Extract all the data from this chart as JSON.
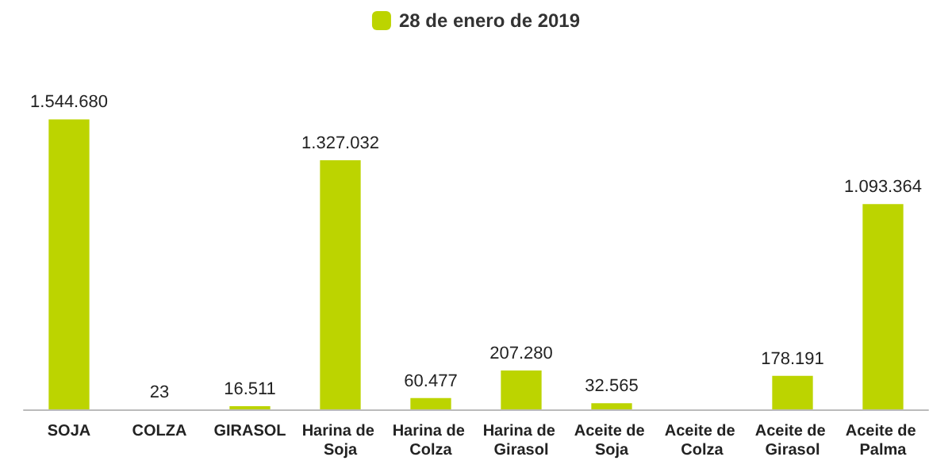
{
  "chart_data": {
    "type": "bar",
    "categories": [
      "SOJA",
      "COLZA",
      "GIRASOL",
      "Harina de Soja",
      "Harina de Colza",
      "Harina de Girasol",
      "Aceite de Soja",
      "Aceite de Colza",
      "Aceite de Girasol",
      "Aceite de Palma"
    ],
    "series": [
      {
        "name": "28 de enero de 2019",
        "color": "#bcd400",
        "values": [
          1544680,
          23,
          16511,
          1327032,
          60477,
          207280,
          32565,
          null,
          178191,
          1093364
        ],
        "value_labels": [
          "1.544.680",
          "23",
          "16.511",
          "1.327.032",
          "60.477",
          "207.280",
          "32.565",
          null,
          "178.191",
          "1.093.364"
        ]
      }
    ],
    "legend": "top",
    "grid": false
  }
}
